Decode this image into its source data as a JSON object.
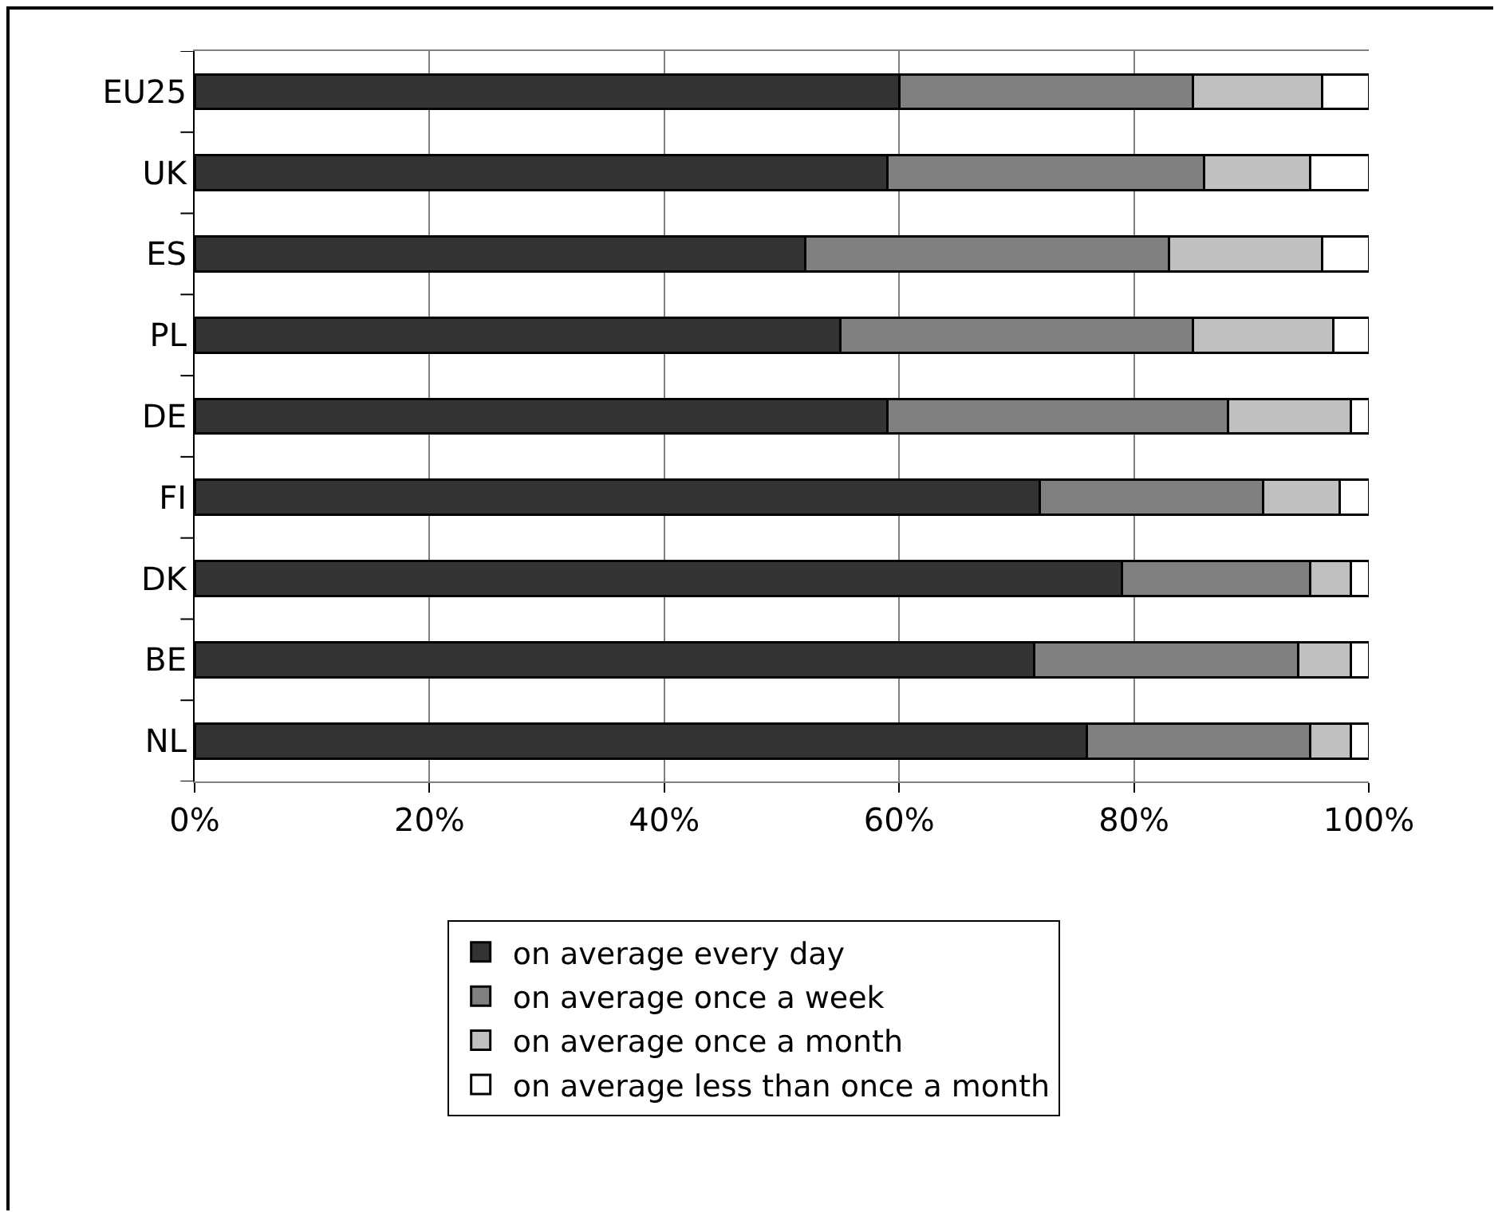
{
  "chart_data": {
    "type": "bar",
    "orientation": "horizontal",
    "stacked": true,
    "categories": [
      "EU25",
      "UK",
      "ES",
      "PL",
      "DE",
      "FI",
      "DK",
      "BE",
      "NL"
    ],
    "series": [
      {
        "name": "on average every day",
        "color": "#333333",
        "values": [
          60,
          59,
          52,
          55,
          59,
          72,
          79,
          71.5,
          76
        ]
      },
      {
        "name": "on average once a week",
        "color": "#808080",
        "values": [
          25,
          27,
          31,
          30,
          29,
          19,
          16,
          22.5,
          19
        ]
      },
      {
        "name": "on average once a month",
        "color": "#c0c0c0",
        "values": [
          11,
          9,
          13,
          12,
          10.5,
          6.5,
          3.5,
          4.5,
          3.5
        ]
      },
      {
        "name": "on average less than once a month",
        "color": "#ffffff",
        "values": [
          4,
          5,
          4,
          3,
          1.5,
          2.5,
          1.5,
          1.5,
          1.5
        ]
      }
    ],
    "xlim": [
      0,
      100
    ],
    "xticks": [
      {
        "value": 0,
        "label": "0%"
      },
      {
        "value": 20,
        "label": "20%"
      },
      {
        "value": 40,
        "label": "40%"
      },
      {
        "value": 60,
        "label": "60%"
      },
      {
        "value": 80,
        "label": "80%"
      },
      {
        "value": 100,
        "label": "100%"
      }
    ],
    "grid": "x",
    "legend": "bottom"
  }
}
